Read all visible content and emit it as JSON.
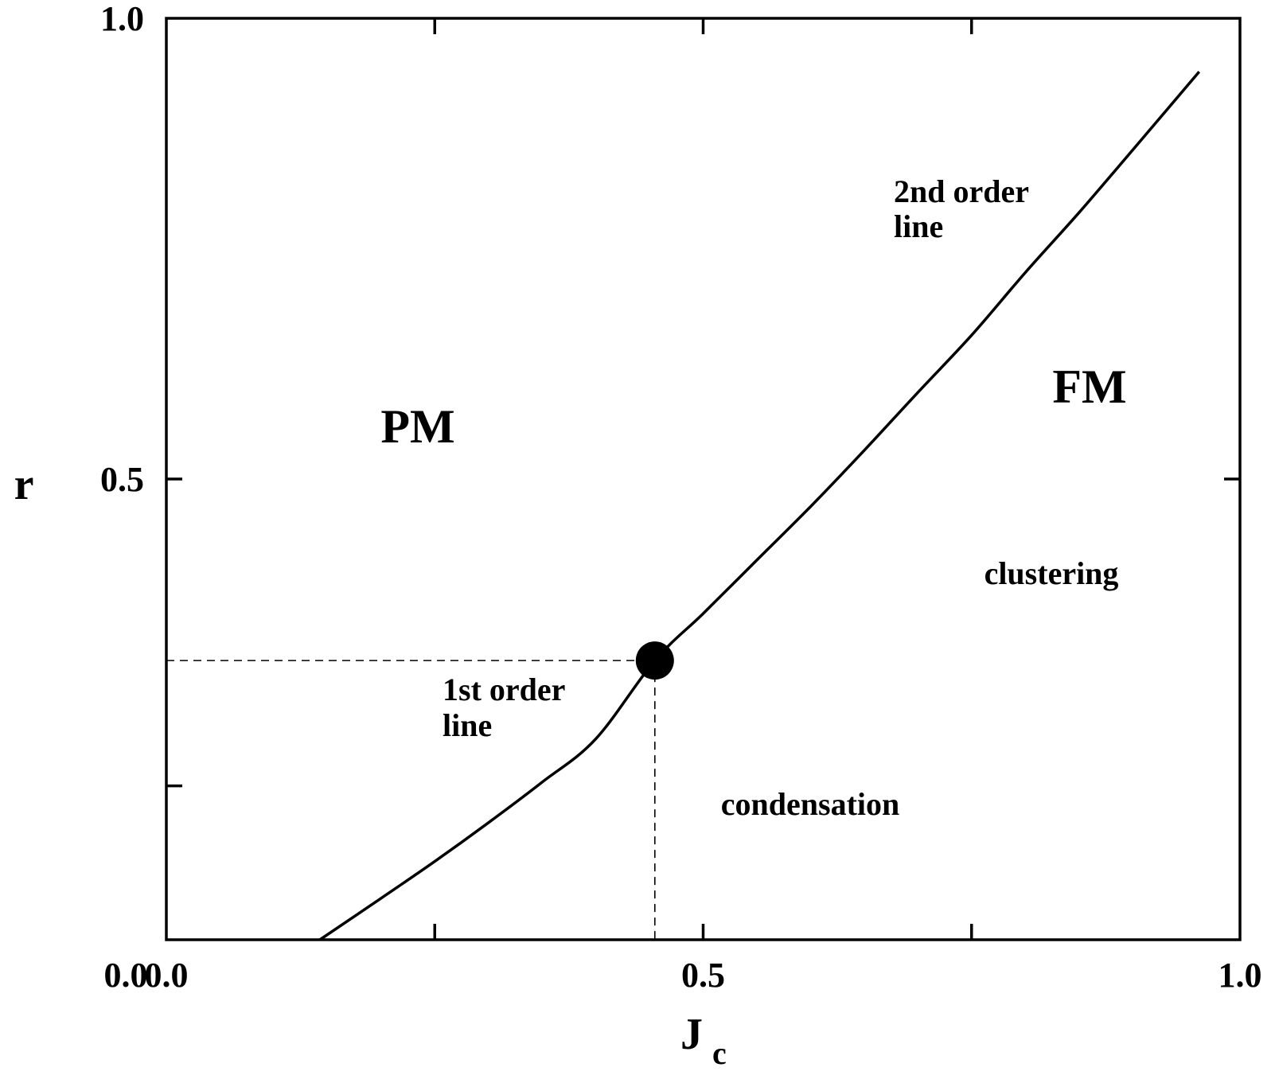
{
  "chart_data": {
    "type": "line",
    "title": "",
    "xlabel": "J",
    "xlabel_subscript": "c",
    "ylabel": "r",
    "xlim": [
      0.0,
      1.0
    ],
    "ylim": [
      0.0,
      1.0
    ],
    "grid": false,
    "xticks": [
      0.0,
      0.25,
      0.5,
      0.75,
      1.0
    ],
    "yticks": [
      0.0,
      0.167,
      0.5,
      1.0
    ],
    "xtick_labels": [
      {
        "value": 0.0,
        "label": "0.0"
      },
      {
        "value": 0.5,
        "label": "0.5"
      },
      {
        "value": 1.0,
        "label": "1.0"
      }
    ],
    "ytick_labels": [
      {
        "value": 0.0,
        "label": "0.0"
      },
      {
        "value": 0.5,
        "label": "0.5"
      },
      {
        "value": 1.0,
        "label": "1.0"
      }
    ],
    "series": [
      {
        "x": [
          0.143,
          0.2,
          0.25,
          0.3,
          0.35,
          0.4,
          0.455,
          0.5,
          0.55,
          0.6,
          0.65,
          0.7,
          0.75,
          0.8,
          0.85,
          0.9,
          0.962
        ],
        "y": [
          0.0,
          0.045,
          0.085,
          0.127,
          0.171,
          0.218,
          0.303,
          0.354,
          0.412,
          0.47,
          0.531,
          0.594,
          0.656,
          0.724,
          0.789,
          0.857,
          0.942
        ]
      }
    ],
    "critical_point": {
      "x": 0.455,
      "y": 0.303
    },
    "phase_labels": [
      "PM",
      "FM"
    ],
    "annotations": [
      "2nd order",
      "line",
      "1st order",
      "line",
      "clustering",
      "condensation"
    ]
  }
}
